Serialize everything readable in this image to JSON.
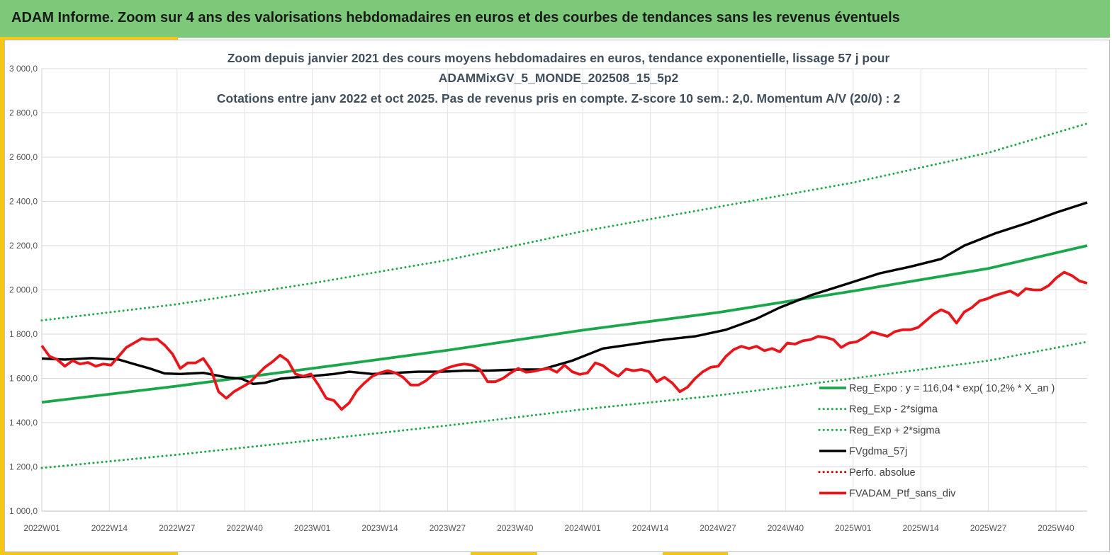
{
  "header": {
    "title": "ADAM Informe. Zoom sur 4 ans des valorisations hebdomadaires en euros et des courbes de tendances sans les revenus éventuels"
  },
  "colors": {
    "banner": "#7dc97a",
    "accent": "#f5c518",
    "regression": "#1aa64a",
    "band": "#22a84c",
    "smoothed": "#000000",
    "portfolio": "#e8161b",
    "perfo": "#c00000"
  },
  "chart_data": {
    "type": "line",
    "title_lines": [
      "Zoom depuis janvier 2021 des cours moyens hebdomadaires  en euros, tendance exponentielle, lissage 57 j pour",
      "ADAMMixGV_5_MONDE_202508_15_5p2",
      "Cotations entre janv 2022 et oct 2025. Pas de revenus pris en compte. Z-score 10 sem.: 2,0. Momentum A/V (20/0) : 2"
    ],
    "x_tick_labels": [
      "2022W01",
      "2022W14",
      "2022W27",
      "2022W40",
      "2023W01",
      "2023W14",
      "2023W27",
      "2023W40",
      "2024W01",
      "2024W14",
      "2024W27",
      "2024W40",
      "2025W01",
      "2025W14",
      "2025W27",
      "2025W40"
    ],
    "x_range_weeks": [
      0,
      201
    ],
    "ylim": [
      1000,
      3000
    ],
    "y_ticks": [
      1000,
      1200,
      1400,
      1600,
      1800,
      2000,
      2200,
      2400,
      2600,
      2800,
      3000
    ],
    "y_tick_labels": [
      "1 000,0",
      "1 200,0",
      "1 400,0",
      "1 600,0",
      "1 800,0",
      "2 000,0",
      "2 200,0",
      "2 400,0",
      "2 600,0",
      "2 800,0",
      "3 000,0"
    ],
    "grid": true,
    "legend_position": "bottom-right",
    "series": [
      {
        "name": "Reg_Expo : y = 116,04 * exp( 10,2% *  X_an )",
        "style": "solid-thick",
        "color": "#1aa64a",
        "points": [
          [
            0,
            1492
          ],
          [
            26,
            1565
          ],
          [
            52,
            1645
          ],
          [
            78,
            1727
          ],
          [
            104,
            1818
          ],
          [
            130,
            1898
          ],
          [
            156,
            1995
          ],
          [
            182,
            2097
          ],
          [
            201,
            2200
          ]
        ]
      },
      {
        "name": "Reg_Exp - 2*sigma",
        "style": "dotted",
        "color": "#22a84c",
        "points": [
          [
            0,
            1195
          ],
          [
            26,
            1255
          ],
          [
            52,
            1320
          ],
          [
            78,
            1387
          ],
          [
            104,
            1460
          ],
          [
            130,
            1523
          ],
          [
            156,
            1600
          ],
          [
            182,
            1680
          ],
          [
            201,
            1765
          ]
        ]
      },
      {
        "name": "Reg_Exp + 2*sigma",
        "style": "dotted",
        "color": "#22a84c",
        "points": [
          [
            0,
            1862
          ],
          [
            26,
            1935
          ],
          [
            52,
            2030
          ],
          [
            78,
            2135
          ],
          [
            104,
            2265
          ],
          [
            130,
            2375
          ],
          [
            156,
            2485
          ],
          [
            182,
            2620
          ],
          [
            201,
            2752
          ]
        ]
      },
      {
        "name": "FVgdma_57j",
        "style": "solid",
        "color": "#000000",
        "points": [
          [
            0,
            1690
          ],
          [
            6,
            1685
          ],
          [
            13,
            1692
          ],
          [
            20,
            1685
          ],
          [
            24,
            1665
          ],
          [
            28,
            1645
          ],
          [
            32,
            1622
          ],
          [
            36,
            1620
          ],
          [
            42,
            1625
          ],
          [
            48,
            1605
          ],
          [
            52,
            1598
          ],
          [
            55,
            1575
          ],
          [
            58,
            1580
          ],
          [
            62,
            1598
          ],
          [
            66,
            1605
          ],
          [
            70,
            1610
          ],
          [
            76,
            1620
          ],
          [
            80,
            1630
          ],
          [
            86,
            1620
          ],
          [
            92,
            1625
          ],
          [
            98,
            1630
          ],
          [
            104,
            1630
          ],
          [
            110,
            1635
          ],
          [
            116,
            1635
          ],
          [
            124,
            1640
          ],
          [
            130,
            1640
          ],
          [
            138,
            1680
          ],
          [
            146,
            1735
          ],
          [
            154,
            1755
          ],
          [
            162,
            1775
          ],
          [
            170,
            1790
          ],
          [
            178,
            1820
          ],
          [
            186,
            1870
          ],
          [
            192,
            1920
          ],
          [
            200,
            1975
          ],
          [
            210,
            2030
          ],
          [
            218,
            2075
          ],
          [
            226,
            2105
          ],
          [
            234,
            2140
          ],
          [
            240,
            2200
          ],
          [
            248,
            2255
          ],
          [
            256,
            2300
          ],
          [
            264,
            2350
          ],
          [
            272,
            2395
          ]
        ]
      },
      {
        "name": "Perfo. absolue",
        "style": "dotted",
        "color": "#c00000",
        "points": []
      },
      {
        "name": "FVADAM_Ptf_sans_div",
        "style": "solid-thick",
        "color": "#e8161b",
        "points": [
          [
            0,
            1748
          ],
          [
            2,
            1700
          ],
          [
            4,
            1685
          ],
          [
            6,
            1655
          ],
          [
            8,
            1680
          ],
          [
            10,
            1665
          ],
          [
            12,
            1672
          ],
          [
            14,
            1655
          ],
          [
            16,
            1665
          ],
          [
            18,
            1660
          ],
          [
            20,
            1700
          ],
          [
            22,
            1740
          ],
          [
            24,
            1760
          ],
          [
            26,
            1780
          ],
          [
            28,
            1775
          ],
          [
            30,
            1778
          ],
          [
            32,
            1750
          ],
          [
            34,
            1710
          ],
          [
            36,
            1645
          ],
          [
            38,
            1670
          ],
          [
            40,
            1670
          ],
          [
            42,
            1690
          ],
          [
            44,
            1640
          ],
          [
            46,
            1540
          ],
          [
            48,
            1510
          ],
          [
            50,
            1540
          ],
          [
            52,
            1560
          ],
          [
            54,
            1580
          ],
          [
            56,
            1615
          ],
          [
            58,
            1650
          ],
          [
            60,
            1675
          ],
          [
            62,
            1705
          ],
          [
            64,
            1680
          ],
          [
            66,
            1620
          ],
          [
            68,
            1610
          ],
          [
            70,
            1620
          ],
          [
            72,
            1570
          ],
          [
            74,
            1510
          ],
          [
            76,
            1500
          ],
          [
            78,
            1460
          ],
          [
            80,
            1490
          ],
          [
            82,
            1545
          ],
          [
            84,
            1580
          ],
          [
            86,
            1610
          ],
          [
            88,
            1625
          ],
          [
            90,
            1635
          ],
          [
            92,
            1625
          ],
          [
            94,
            1605
          ],
          [
            96,
            1570
          ],
          [
            98,
            1570
          ],
          [
            100,
            1590
          ],
          [
            102,
            1620
          ],
          [
            104,
            1635
          ],
          [
            106,
            1650
          ],
          [
            108,
            1660
          ],
          [
            110,
            1665
          ],
          [
            112,
            1660
          ],
          [
            114,
            1640
          ],
          [
            116,
            1585
          ],
          [
            118,
            1585
          ],
          [
            120,
            1600
          ],
          [
            122,
            1625
          ],
          [
            124,
            1645
          ],
          [
            126,
            1628
          ],
          [
            128,
            1632
          ],
          [
            130,
            1640
          ],
          [
            132,
            1645
          ],
          [
            134,
            1628
          ],
          [
            136,
            1660
          ],
          [
            138,
            1630
          ],
          [
            140,
            1618
          ],
          [
            142,
            1625
          ],
          [
            144,
            1670
          ],
          [
            146,
            1658
          ],
          [
            148,
            1630
          ],
          [
            150,
            1610
          ],
          [
            152,
            1642
          ],
          [
            154,
            1635
          ],
          [
            156,
            1640
          ],
          [
            158,
            1630
          ],
          [
            160,
            1585
          ],
          [
            162,
            1605
          ],
          [
            164,
            1580
          ],
          [
            166,
            1540
          ],
          [
            168,
            1560
          ],
          [
            170,
            1600
          ],
          [
            172,
            1630
          ],
          [
            174,
            1650
          ],
          [
            176,
            1655
          ],
          [
            178,
            1700
          ],
          [
            180,
            1730
          ],
          [
            182,
            1745
          ],
          [
            184,
            1735
          ],
          [
            186,
            1745
          ],
          [
            188,
            1725
          ],
          [
            190,
            1735
          ],
          [
            192,
            1720
          ],
          [
            194,
            1760
          ],
          [
            196,
            1755
          ],
          [
            198,
            1770
          ],
          [
            200,
            1775
          ],
          [
            202,
            1790
          ],
          [
            204,
            1785
          ],
          [
            206,
            1775
          ],
          [
            208,
            1740
          ],
          [
            210,
            1760
          ],
          [
            212,
            1765
          ],
          [
            214,
            1785
          ],
          [
            216,
            1810
          ],
          [
            218,
            1800
          ],
          [
            220,
            1790
          ],
          [
            222,
            1812
          ],
          [
            224,
            1820
          ],
          [
            226,
            1820
          ],
          [
            228,
            1830
          ],
          [
            230,
            1860
          ],
          [
            232,
            1890
          ],
          [
            234,
            1910
          ],
          [
            236,
            1895
          ],
          [
            238,
            1850
          ],
          [
            240,
            1900
          ],
          [
            242,
            1920
          ],
          [
            244,
            1950
          ],
          [
            246,
            1960
          ],
          [
            248,
            1975
          ],
          [
            250,
            1985
          ],
          [
            252,
            1995
          ],
          [
            254,
            1975
          ],
          [
            256,
            2005
          ],
          [
            258,
            2000
          ],
          [
            260,
            2000
          ],
          [
            262,
            2020
          ],
          [
            264,
            2055
          ],
          [
            266,
            2080
          ],
          [
            268,
            2065
          ],
          [
            270,
            2040
          ],
          [
            272,
            2030
          ]
        ]
      }
    ]
  },
  "legend": [
    {
      "label": "Reg_Expo : y = 116,04 * exp( 10,2% *  X_an )",
      "style": "solid-thick",
      "color": "#1aa64a"
    },
    {
      "label": "Reg_Exp - 2*sigma",
      "style": "dotted",
      "color": "#22a84c"
    },
    {
      "label": "Reg_Exp + 2*sigma",
      "style": "dotted",
      "color": "#22a84c"
    },
    {
      "label": "FVgdma_57j",
      "style": "solid",
      "color": "#000000"
    },
    {
      "label": "Perfo. absolue",
      "style": "dotted",
      "color": "#c00000"
    },
    {
      "label": "FVADAM_Ptf_sans_div",
      "style": "solid-thick",
      "color": "#e8161b"
    }
  ]
}
